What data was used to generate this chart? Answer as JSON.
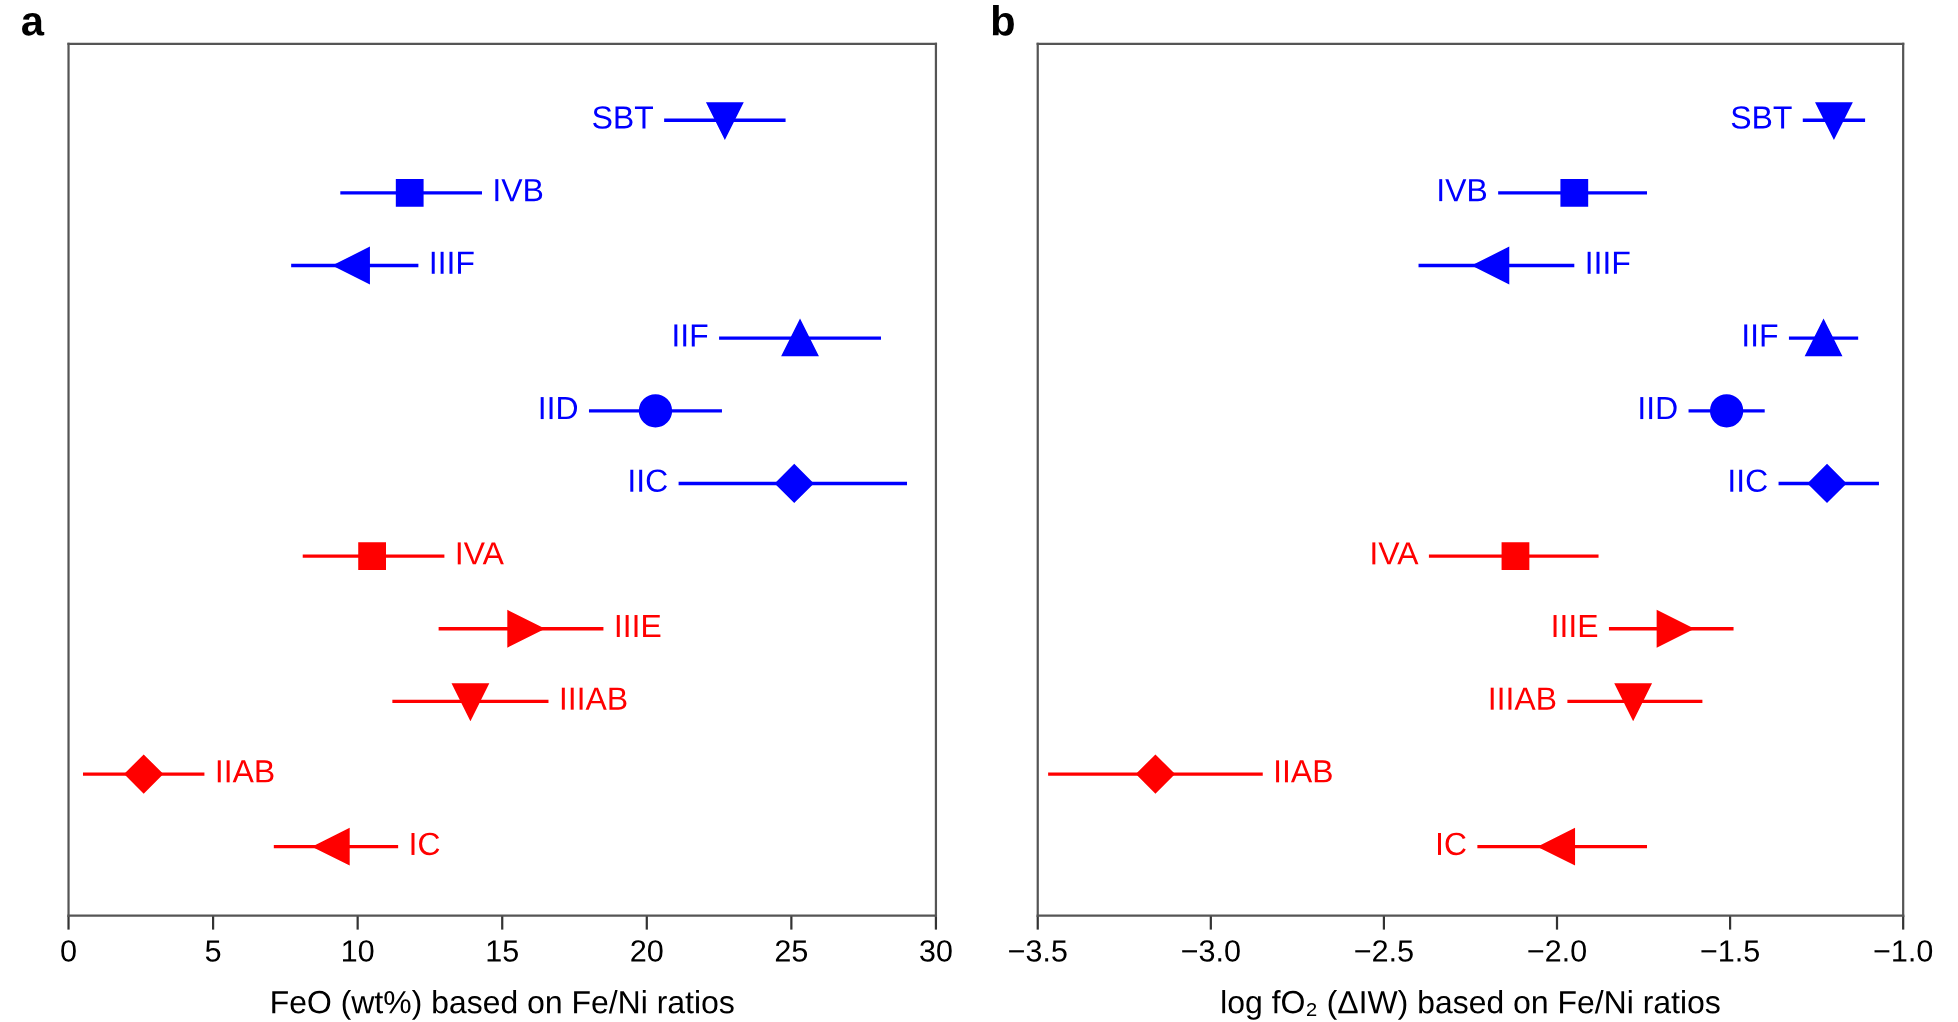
{
  "chart_data": [
    {
      "type": "scatter",
      "title": "a",
      "xlabel": "FeO (wt%) based on Fe/Ni ratios",
      "orientation": "horizontal",
      "categories": [
        "SBT",
        "IVB",
        "IIIF",
        "IIF",
        "IID",
        "IIC",
        "IVA",
        "IIIE",
        "IIIAB",
        "IIAB",
        "IC"
      ],
      "xlim": [
        0,
        30
      ],
      "xticks": [
        0,
        5,
        10,
        15,
        20,
        25,
        30
      ],
      "tick_labels": "x",
      "grid": false,
      "legend": false,
      "series": [
        {
          "color": "#0000ff",
          "marker": "triangle-down",
          "values": [
            22.7,
            null,
            null,
            null,
            null,
            null,
            null,
            null,
            null,
            null,
            null
          ],
          "errors": [
            [
              20.6,
              24.8
            ],
            null,
            null,
            null,
            null,
            null,
            null,
            null,
            null,
            null,
            null
          ]
        },
        {
          "color": "#0000ff",
          "marker": "square",
          "values": [
            null,
            11.8,
            null,
            null,
            null,
            null,
            null,
            null,
            null,
            null,
            null
          ],
          "errors": [
            null,
            [
              9.4,
              14.3
            ],
            null,
            null,
            null,
            null,
            null,
            null,
            null,
            null,
            null
          ]
        },
        {
          "color": "#0000ff",
          "marker": "triangle-left",
          "values": [
            null,
            null,
            9.8,
            null,
            null,
            null,
            null,
            null,
            null,
            null,
            null
          ],
          "errors": [
            null,
            null,
            [
              7.7,
              12.1
            ],
            null,
            null,
            null,
            null,
            null,
            null,
            null,
            null
          ]
        },
        {
          "color": "#0000ff",
          "marker": "triangle",
          "values": [
            null,
            null,
            null,
            25.3,
            null,
            null,
            null,
            null,
            null,
            null,
            null
          ],
          "errors": [
            null,
            null,
            null,
            [
              22.5,
              28.1
            ],
            null,
            null,
            null,
            null,
            null,
            null,
            null
          ]
        },
        {
          "color": "#0000ff",
          "marker": "circle",
          "values": [
            null,
            null,
            null,
            null,
            20.3,
            null,
            null,
            null,
            null,
            null,
            null
          ],
          "errors": [
            null,
            null,
            null,
            null,
            [
              18.0,
              22.6
            ],
            null,
            null,
            null,
            null,
            null,
            null
          ]
        },
        {
          "color": "#0000ff",
          "marker": "diamond",
          "values": [
            null,
            null,
            null,
            null,
            null,
            25.1,
            null,
            null,
            null,
            null,
            null
          ],
          "errors": [
            null,
            null,
            null,
            null,
            null,
            [
              21.1,
              29.0
            ],
            null,
            null,
            null,
            null,
            null
          ]
        },
        {
          "color": "#ff0000",
          "marker": "square",
          "values": [
            null,
            null,
            null,
            null,
            null,
            null,
            10.5,
            null,
            null,
            null,
            null
          ],
          "errors": [
            null,
            null,
            null,
            null,
            null,
            null,
            [
              8.1,
              13.0
            ],
            null,
            null,
            null,
            null
          ]
        },
        {
          "color": "#ff0000",
          "marker": "triangle-right",
          "values": [
            null,
            null,
            null,
            null,
            null,
            null,
            null,
            15.8,
            null,
            null,
            null
          ],
          "errors": [
            null,
            null,
            null,
            null,
            null,
            null,
            null,
            [
              12.8,
              18.5
            ],
            null,
            null,
            null
          ]
        },
        {
          "color": "#ff0000",
          "marker": "triangle-down",
          "values": [
            null,
            null,
            null,
            null,
            null,
            null,
            null,
            null,
            13.9,
            null,
            null
          ],
          "errors": [
            null,
            null,
            null,
            null,
            null,
            null,
            null,
            null,
            [
              11.2,
              16.6
            ],
            null,
            null
          ]
        },
        {
          "color": "#ff0000",
          "marker": "diamond",
          "values": [
            null,
            null,
            null,
            null,
            null,
            null,
            null,
            null,
            null,
            2.6,
            null
          ],
          "errors": [
            null,
            null,
            null,
            null,
            null,
            null,
            null,
            null,
            null,
            [
              0.5,
              4.7
            ],
            null
          ]
        },
        {
          "color": "#ff0000",
          "marker": "triangle-left",
          "values": [
            null,
            null,
            null,
            null,
            null,
            null,
            null,
            null,
            null,
            null,
            9.1
          ],
          "errors": [
            null,
            null,
            null,
            null,
            null,
            null,
            null,
            null,
            null,
            null,
            [
              7.1,
              11.4
            ]
          ]
        }
      ]
    },
    {
      "type": "scatter",
      "title": "b",
      "xlabel": "log fO₂ (ΔIW) based on Fe/Ni ratios",
      "orientation": "horizontal",
      "categories": [
        "SBT",
        "IVB",
        "IIIF",
        "IIF",
        "IID",
        "IIC",
        "IVA",
        "IIIE",
        "IIIAB",
        "IIAB",
        "IC"
      ],
      "xlim": [
        -3.5,
        -1.0
      ],
      "xticks": [
        {
          "value": -3.5,
          "label": "−3.5"
        },
        {
          "value": -3.0,
          "label": "−3.0"
        },
        {
          "value": -2.5,
          "label": "−2.5"
        },
        {
          "value": -2.0,
          "label": "−2.0"
        },
        {
          "value": -1.5,
          "label": "−1.5"
        },
        {
          "value": -1.0,
          "label": "−1.0"
        }
      ],
      "tick_labels": "x",
      "grid": false,
      "legend": false,
      "series": [
        {
          "color": "#0000ff",
          "marker": "triangle-down",
          "values": [
            -1.2,
            null,
            null,
            null,
            null,
            null,
            null,
            null,
            null,
            null,
            null
          ],
          "errors": [
            [
              -1.29,
              -1.11
            ],
            null,
            null,
            null,
            null,
            null,
            null,
            null,
            null,
            null,
            null
          ]
        },
        {
          "color": "#0000ff",
          "marker": "square",
          "values": [
            null,
            -1.95,
            null,
            null,
            null,
            null,
            null,
            null,
            null,
            null,
            null
          ],
          "errors": [
            null,
            [
              -2.17,
              -1.74
            ],
            null,
            null,
            null,
            null,
            null,
            null,
            null,
            null,
            null
          ]
        },
        {
          "color": "#0000ff",
          "marker": "triangle-left",
          "values": [
            null,
            null,
            -2.19,
            null,
            null,
            null,
            null,
            null,
            null,
            null,
            null
          ],
          "errors": [
            null,
            null,
            [
              -2.4,
              -1.95
            ],
            null,
            null,
            null,
            null,
            null,
            null,
            null,
            null
          ]
        },
        {
          "color": "#0000ff",
          "marker": "triangle",
          "values": [
            null,
            null,
            null,
            -1.23,
            null,
            null,
            null,
            null,
            null,
            null,
            null
          ],
          "errors": [
            null,
            null,
            null,
            [
              -1.33,
              -1.13
            ],
            null,
            null,
            null,
            null,
            null,
            null,
            null
          ]
        },
        {
          "color": "#0000ff",
          "marker": "circle",
          "values": [
            null,
            null,
            null,
            null,
            -1.51,
            null,
            null,
            null,
            null,
            null,
            null
          ],
          "errors": [
            null,
            null,
            null,
            null,
            [
              -1.62,
              -1.4
            ],
            null,
            null,
            null,
            null,
            null,
            null
          ]
        },
        {
          "color": "#0000ff",
          "marker": "diamond",
          "values": [
            null,
            null,
            null,
            null,
            null,
            -1.22,
            null,
            null,
            null,
            null,
            null
          ],
          "errors": [
            null,
            null,
            null,
            null,
            null,
            [
              -1.36,
              -1.07
            ],
            null,
            null,
            null,
            null,
            null
          ]
        },
        {
          "color": "#ff0000",
          "marker": "square",
          "values": [
            null,
            null,
            null,
            null,
            null,
            null,
            -2.12,
            null,
            null,
            null,
            null
          ],
          "errors": [
            null,
            null,
            null,
            null,
            null,
            null,
            [
              -2.37,
              -1.88
            ],
            null,
            null,
            null,
            null
          ]
        },
        {
          "color": "#ff0000",
          "marker": "triangle-right",
          "values": [
            null,
            null,
            null,
            null,
            null,
            null,
            null,
            -1.66,
            null,
            null,
            null
          ],
          "errors": [
            null,
            null,
            null,
            null,
            null,
            null,
            null,
            [
              -1.85,
              -1.49
            ],
            null,
            null,
            null
          ]
        },
        {
          "color": "#ff0000",
          "marker": "triangle-down",
          "values": [
            null,
            null,
            null,
            null,
            null,
            null,
            null,
            null,
            -1.78,
            null,
            null
          ],
          "errors": [
            null,
            null,
            null,
            null,
            null,
            null,
            null,
            null,
            [
              -1.97,
              -1.58
            ],
            null,
            null
          ]
        },
        {
          "color": "#ff0000",
          "marker": "diamond",
          "values": [
            null,
            null,
            null,
            null,
            null,
            null,
            null,
            null,
            null,
            -3.16,
            null
          ],
          "errors": [
            null,
            null,
            null,
            null,
            null,
            null,
            null,
            null,
            null,
            [
              -3.47,
              -2.85
            ],
            null
          ]
        },
        {
          "color": "#ff0000",
          "marker": "triangle-left",
          "values": [
            null,
            null,
            null,
            null,
            null,
            null,
            null,
            null,
            null,
            null,
            -2.0
          ],
          "errors": [
            null,
            null,
            null,
            null,
            null,
            null,
            null,
            null,
            null,
            null,
            [
              -2.23,
              -1.74
            ]
          ]
        }
      ]
    }
  ]
}
